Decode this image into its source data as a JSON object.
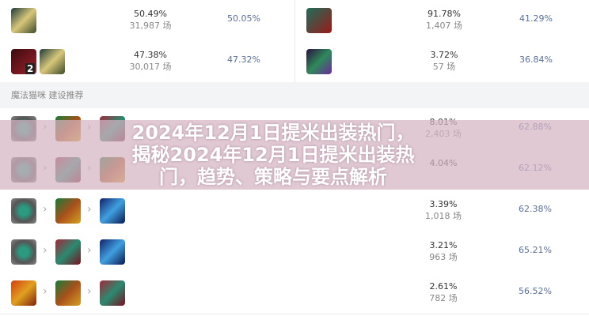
{
  "top_rows": [
    {
      "left": {
        "icons": [
          "scroll-item-icon"
        ],
        "pick_rate": "50.49%",
        "games": "31,987 场",
        "win_rate": "50.05%"
      },
      "right": {
        "icons": [
          "red-boots-icon"
        ],
        "pick_rate": "91.78%",
        "games": "1,407 场",
        "win_rate": "41.29%"
      }
    },
    {
      "left": {
        "icons": [
          "red-potion-icon",
          "scroll-item-icon"
        ],
        "badge": "2",
        "pick_rate": "47.38%",
        "games": "30,017 场",
        "win_rate": "47.32%"
      },
      "right": {
        "icons": [
          "green-boots-icon"
        ],
        "pick_rate": "3.72%",
        "games": "57 场",
        "win_rate": "36.84%"
      }
    }
  ],
  "section_header": "魔法猫咪 建设推荐",
  "build_rows": [
    {
      "icons": [
        "gray-eye-item-icon",
        "green-bell-item-icon",
        "red-cloak-item-icon"
      ],
      "pick_rate": "8.01%",
      "games": "2,403 场",
      "win_rate": "62.88%"
    },
    {
      "icons": [
        "gray-eye-item-icon",
        "red-cloak-item-icon",
        "green-bell-item-icon"
      ],
      "pick_rate": "4.04%",
      "games": "",
      "win_rate": "62.12%"
    },
    {
      "icons": [
        "gray-eye-item-icon",
        "green-bell-item-icon",
        "blue-spiral-item-icon"
      ],
      "pick_rate": "3.39%",
      "games": "1,018 场",
      "win_rate": "62.38%"
    },
    {
      "icons": [
        "gray-eye-item-icon",
        "red-cloak-item-icon",
        "blue-spiral-item-icon"
      ],
      "pick_rate": "3.21%",
      "games": "963 场",
      "win_rate": "65.21%"
    },
    {
      "icons": [
        "orange-crest-item-icon",
        "green-bell-item-icon",
        "red-cloak-item-icon"
      ],
      "pick_rate": "2.61%",
      "games": "782 场",
      "win_rate": "56.52%"
    }
  ],
  "banner": "2024年12月1日提米出装热门，揭秘2024年12月1日提米出装热门，趋势、策略与要点解析",
  "colors": {
    "win_rate": "#5a6f99",
    "banner": "#d6b4c4"
  }
}
